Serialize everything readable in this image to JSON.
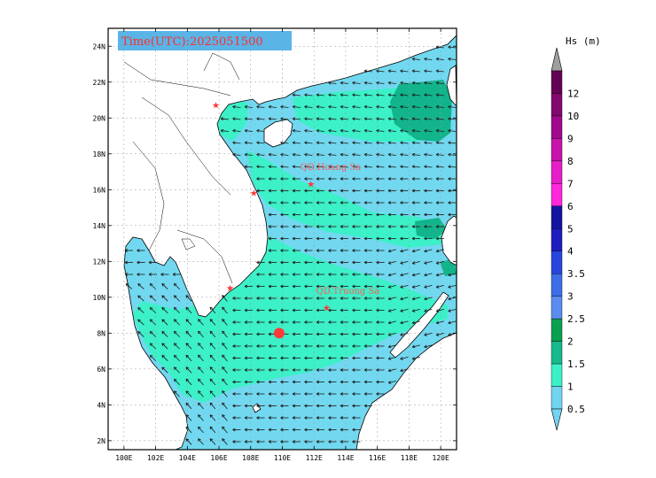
{
  "map": {
    "title": "Time(UTC):2025051500",
    "lon_labels": [
      "100E",
      "102E",
      "104E",
      "106E",
      "108E",
      "110E",
      "112E",
      "114E",
      "116E",
      "118E",
      "120E"
    ],
    "lat_labels": [
      "24N",
      "22N",
      "20N",
      "18N",
      "16N",
      "14N",
      "12N",
      "10N",
      "8N",
      "6N",
      "4N",
      "2N"
    ],
    "lon_range": [
      99,
      121
    ],
    "lat_range": [
      1.5,
      25
    ],
    "places": [
      {
        "label": "QD.Hoang Sa",
        "lon": 111.8,
        "lat": 16.3
      },
      {
        "label": "QD.Truong Sa",
        "lon": 112.8,
        "lat": 9.4
      }
    ],
    "marker_stars": [
      {
        "lon": 105.8,
        "lat": 20.7
      },
      {
        "lon": 108.2,
        "lat": 15.8
      },
      {
        "lon": 106.7,
        "lat": 10.5
      },
      {
        "lon": 111.8,
        "lat": 16.3
      },
      {
        "lon": 112.8,
        "lat": 9.4
      }
    ],
    "red_dot": {
      "lon": 109.8,
      "lat": 8.0
    },
    "colors": {
      "land": "#ffffff",
      "sea_low": "#72d8f0",
      "sea_mid": "#3cf0c8",
      "sea_high": "#12b48c",
      "marker": "#ff3a3a",
      "arrow": "#1a1a1a"
    }
  },
  "colorbar": {
    "title": "Hs (m)",
    "levels": [
      "0.5",
      "1",
      "1.5",
      "2",
      "2.5",
      "3",
      "3.5",
      "4",
      "5",
      "6",
      "7",
      "8",
      "9",
      "10",
      "12"
    ],
    "colors": [
      "#73d4f0",
      "#3cf0c8",
      "#18b98c",
      "#0aa050",
      "#5a8cf0",
      "#3c6ee6",
      "#2846dc",
      "#1e1ebe",
      "#1414a0",
      "#ff28dc",
      "#e61ec8",
      "#c814aa",
      "#a00a8c",
      "#82086e",
      "#640456"
    ],
    "top_color": "#a0a0a0"
  }
}
